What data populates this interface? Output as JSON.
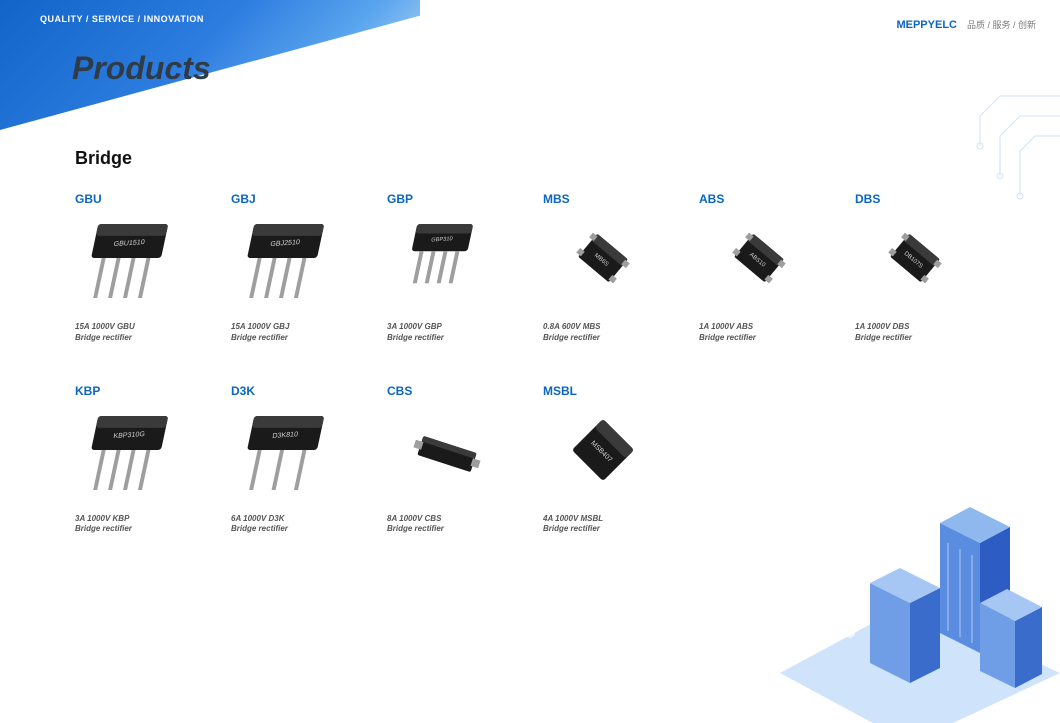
{
  "header": {
    "tagline": "QUALITY / SERVICE / INNOVATION",
    "page_title": "Products",
    "brand_name": "MEPPYELC",
    "brand_cn": "品质 / 服务 / 创新"
  },
  "section": {
    "title": "Bridge"
  },
  "palette": {
    "brand_blue": "#0a66c2",
    "banner_from": "#1264c8",
    "banner_to": "#d6e8fa",
    "title_dark": "#2f3c48",
    "spec_grey": "#555555",
    "chip_body": "#1a1a1a",
    "chip_highlight": "#3a3a3a",
    "pin_color": "#9e9e9e",
    "city_blue_light": "#8fb8ef",
    "city_blue_mid": "#5a8de0",
    "city_blue_dark": "#2d5cc2",
    "city_ground": "#cfe3fa"
  },
  "products": [
    {
      "id": "gbu",
      "name": "GBU",
      "label_text": "GBU1510",
      "spec1": "15A 1000V GBU",
      "spec2": "Bridge rectifier",
      "shape": "tab4"
    },
    {
      "id": "gbj",
      "name": "GBJ",
      "label_text": "GBJ2510",
      "spec1": "15A 1000V GBJ",
      "spec2": "Bridge rectifier",
      "shape": "tab4"
    },
    {
      "id": "gbp",
      "name": "GBP",
      "label_text": "GBP310",
      "spec1": "3A 1000V GBP",
      "spec2": "Bridge rectifier",
      "shape": "tab4s"
    },
    {
      "id": "mbs",
      "name": "MBS",
      "label_text": "MB6S",
      "spec1": "0.8A 600V MBS",
      "spec2": "Bridge rectifier",
      "shape": "smd4"
    },
    {
      "id": "abs",
      "name": "ABS",
      "label_text": "ABS10",
      "spec1": "1A 1000V ABS",
      "spec2": "Bridge rectifier",
      "shape": "smd4"
    },
    {
      "id": "dbs",
      "name": "DBS",
      "label_text": "DB107S",
      "spec1": "1A 1000V DBS",
      "spec2": "Bridge rectifier",
      "shape": "smd4"
    },
    {
      "id": "kbp",
      "name": "KBP",
      "label_text": "KBP310G",
      "spec1": "3A 1000V KBP",
      "spec2": "Bridge rectifier",
      "shape": "tab4"
    },
    {
      "id": "d3k",
      "name": "D3K",
      "label_text": "D3K810",
      "spec1": "6A 1000V D3K",
      "spec2": "Bridge rectifier",
      "shape": "tab3"
    },
    {
      "id": "cbs",
      "name": "CBS",
      "label_text": "",
      "spec1": "8A 1000V CBS",
      "spec2": "Bridge rectifier",
      "shape": "flat"
    },
    {
      "id": "msbl",
      "name": "MSBL",
      "label_text": "MSB407",
      "spec1": "4A 1000V MSBL",
      "spec2": "Bridge rectifier",
      "shape": "dia"
    }
  ],
  "grid": {
    "rows": 2,
    "cols": 6,
    "layout": [
      [
        "gbu",
        "gbj",
        "gbp",
        "mbs",
        "abs",
        "dbs"
      ],
      [
        "kbp",
        "d3k",
        "cbs",
        "msbl",
        null,
        null
      ]
    ]
  }
}
